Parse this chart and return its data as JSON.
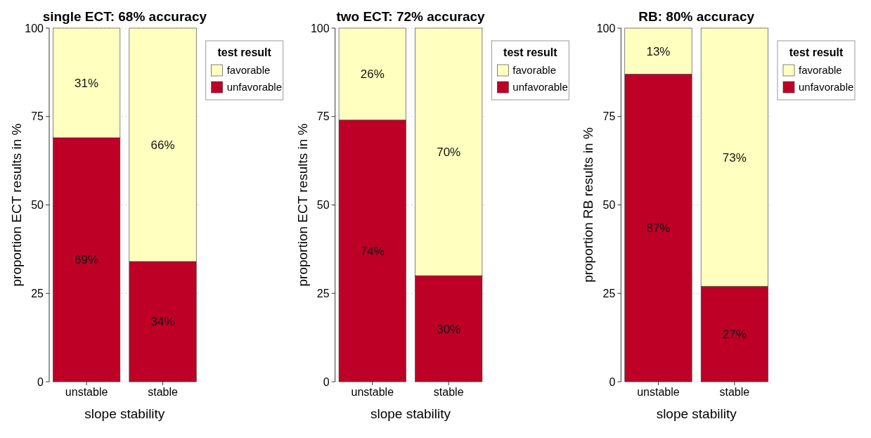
{
  "chart_data": [
    {
      "type": "bar",
      "title": "single ECT: 68% accuracy",
      "xlabel": "slope stability",
      "ylabel": "proportion ECT results in %",
      "legend_title": "test result",
      "categories": [
        "unstable",
        "stable"
      ],
      "stacked": true,
      "ylim": [
        0,
        100
      ],
      "yticks": [
        0,
        25,
        50,
        75,
        100
      ],
      "grid": "y",
      "legend": "right",
      "series": [
        {
          "name": "unfavorable",
          "color": "#be0027",
          "values": [
            69,
            34
          ],
          "value_labels": [
            "69%",
            "34%"
          ]
        },
        {
          "name": "favorable",
          "color": "#ffffbf",
          "values": [
            31,
            66
          ],
          "value_labels": [
            "31%",
            "66%"
          ]
        }
      ]
    },
    {
      "type": "bar",
      "title": "two ECT: 72% accuracy",
      "xlabel": "slope stability",
      "ylabel": "proportion ECT results in %",
      "legend_title": "test result",
      "categories": [
        "unstable",
        "stable"
      ],
      "stacked": true,
      "ylim": [
        0,
        100
      ],
      "yticks": [
        0,
        25,
        50,
        75,
        100
      ],
      "grid": "y",
      "legend": "right",
      "series": [
        {
          "name": "unfavorable",
          "color": "#be0027",
          "values": [
            74,
            30
          ],
          "value_labels": [
            "74%",
            "30%"
          ]
        },
        {
          "name": "favorable",
          "color": "#ffffbf",
          "values": [
            26,
            70
          ],
          "value_labels": [
            "26%",
            "70%"
          ]
        }
      ]
    },
    {
      "type": "bar",
      "title": "RB: 80% accuracy",
      "xlabel": "slope stability",
      "ylabel": "proportion RB results in %",
      "legend_title": "test result",
      "categories": [
        "unstable",
        "stable"
      ],
      "stacked": true,
      "ylim": [
        0,
        100
      ],
      "yticks": [
        0,
        25,
        50,
        75,
        100
      ],
      "grid": "y",
      "legend": "right",
      "series": [
        {
          "name": "unfavorable",
          "color": "#be0027",
          "values": [
            87,
            27
          ],
          "value_labels": [
            "87%",
            "27%"
          ]
        },
        {
          "name": "favorable",
          "color": "#ffffbf",
          "values": [
            13,
            73
          ],
          "value_labels": [
            "13%",
            "73%"
          ]
        }
      ]
    }
  ]
}
